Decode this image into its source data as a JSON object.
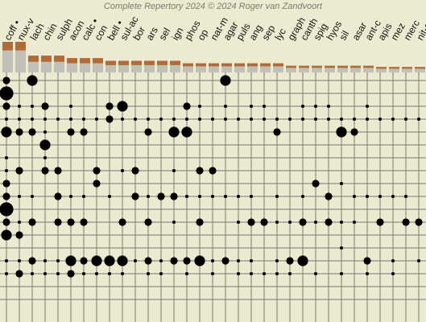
{
  "chart_data": {
    "type": "scatter",
    "title": "Complete Repertory 2024 © 2024 Roger van Zandvoort",
    "xlabel": "",
    "ylabel": "",
    "grid": true,
    "colors": {
      "background": "#ecebd2",
      "bar_top": "#b26b35",
      "bar_bottom": "#c1c1b7",
      "grid": "#8c8c80",
      "dot": "#000000",
      "title": "#7b7b70"
    },
    "remedies": [
      "coff •",
      "nux-v",
      "lach",
      "chin",
      "sulph",
      "acon",
      "calc •",
      "con",
      "bell •",
      "sul-ac",
      "bor",
      "ars",
      "sel",
      "ign",
      "phos",
      "op",
      "nat-m",
      "agar",
      "puls",
      "ang",
      "sep",
      "lyc",
      "graph",
      "canth",
      "spig",
      "hyos",
      "sil",
      "asar",
      "ant-c",
      "apis",
      "mez",
      "merc",
      "nit-ac"
    ],
    "scores": [
      {
        "total": 1.0,
        "grade": 0.72
      },
      {
        "total": 1.0,
        "grade": 0.72
      },
      {
        "total": 0.55,
        "grade": 0.35
      },
      {
        "total": 0.55,
        "grade": 0.35
      },
      {
        "total": 0.55,
        "grade": 0.35
      },
      {
        "total": 0.47,
        "grade": 0.3
      },
      {
        "total": 0.47,
        "grade": 0.3
      },
      {
        "total": 0.47,
        "grade": 0.3
      },
      {
        "total": 0.38,
        "grade": 0.24
      },
      {
        "total": 0.38,
        "grade": 0.24
      },
      {
        "total": 0.38,
        "grade": 0.24
      },
      {
        "total": 0.38,
        "grade": 0.24
      },
      {
        "total": 0.38,
        "grade": 0.24
      },
      {
        "total": 0.38,
        "grade": 0.24
      },
      {
        "total": 0.3,
        "grade": 0.2
      },
      {
        "total": 0.3,
        "grade": 0.2
      },
      {
        "total": 0.3,
        "grade": 0.2
      },
      {
        "total": 0.3,
        "grade": 0.2
      },
      {
        "total": 0.3,
        "grade": 0.2
      },
      {
        "total": 0.3,
        "grade": 0.2
      },
      {
        "total": 0.3,
        "grade": 0.2
      },
      {
        "total": 0.3,
        "grade": 0.2
      },
      {
        "total": 0.22,
        "grade": 0.15
      },
      {
        "total": 0.22,
        "grade": 0.15
      },
      {
        "total": 0.22,
        "grade": 0.15
      },
      {
        "total": 0.22,
        "grade": 0.15
      },
      {
        "total": 0.22,
        "grade": 0.15
      },
      {
        "total": 0.22,
        "grade": 0.15
      },
      {
        "total": 0.22,
        "grade": 0.15
      },
      {
        "total": 0.18,
        "grade": 0.12
      },
      {
        "total": 0.18,
        "grade": 0.12
      },
      {
        "total": 0.18,
        "grade": 0.12
      },
      {
        "total": 0.18,
        "grade": 0.12
      }
    ],
    "rubric_count": 18,
    "grades": [
      {
        "rubric": 0,
        "remedy": 0,
        "g": 2
      },
      {
        "rubric": 0,
        "remedy": 2,
        "g": 3
      },
      {
        "rubric": 0,
        "remedy": 17,
        "g": 3
      },
      {
        "rubric": 1,
        "remedy": 0,
        "g": 4
      },
      {
        "rubric": 2,
        "remedy": 0,
        "g": 2
      },
      {
        "rubric": 2,
        "remedy": 1,
        "g": 1
      },
      {
        "rubric": 2,
        "remedy": 2,
        "g": 1
      },
      {
        "rubric": 2,
        "remedy": 3,
        "g": 2
      },
      {
        "rubric": 2,
        "remedy": 5,
        "g": 1
      },
      {
        "rubric": 2,
        "remedy": 8,
        "g": 2
      },
      {
        "rubric": 2,
        "remedy": 9,
        "g": 3
      },
      {
        "rubric": 2,
        "remedy": 14,
        "g": 2
      },
      {
        "rubric": 2,
        "remedy": 15,
        "g": 1
      },
      {
        "rubric": 2,
        "remedy": 17,
        "g": 1
      },
      {
        "rubric": 2,
        "remedy": 19,
        "g": 1
      },
      {
        "rubric": 2,
        "remedy": 20,
        "g": 1
      },
      {
        "rubric": 2,
        "remedy": 23,
        "g": 1
      },
      {
        "rubric": 2,
        "remedy": 24,
        "g": 1
      },
      {
        "rubric": 2,
        "remedy": 25,
        "g": 1
      },
      {
        "rubric": 2,
        "remedy": 28,
        "g": 1
      },
      {
        "rubric": 3,
        "remedy": 0,
        "g": 1
      },
      {
        "rubric": 3,
        "remedy": 1,
        "g": 1
      },
      {
        "rubric": 3,
        "remedy": 2,
        "g": 1
      },
      {
        "rubric": 3,
        "remedy": 3,
        "g": 1
      },
      {
        "rubric": 3,
        "remedy": 4,
        "g": 1
      },
      {
        "rubric": 3,
        "remedy": 5,
        "g": 1
      },
      {
        "rubric": 3,
        "remedy": 6,
        "g": 1
      },
      {
        "rubric": 3,
        "remedy": 7,
        "g": 1
      },
      {
        "rubric": 3,
        "remedy": 8,
        "g": 2
      },
      {
        "rubric": 3,
        "remedy": 9,
        "g": 1
      },
      {
        "rubric": 3,
        "remedy": 10,
        "g": 1
      },
      {
        "rubric": 3,
        "remedy": 11,
        "g": 1
      },
      {
        "rubric": 3,
        "remedy": 12,
        "g": 1
      },
      {
        "rubric": 3,
        "remedy": 13,
        "g": 1
      },
      {
        "rubric": 3,
        "remedy": 14,
        "g": 1
      },
      {
        "rubric": 3,
        "remedy": 15,
        "g": 1
      },
      {
        "rubric": 3,
        "remedy": 16,
        "g": 1
      },
      {
        "rubric": 3,
        "remedy": 17,
        "g": 1
      },
      {
        "rubric": 3,
        "remedy": 18,
        "g": 1
      },
      {
        "rubric": 3,
        "remedy": 19,
        "g": 1
      },
      {
        "rubric": 3,
        "remedy": 20,
        "g": 1
      },
      {
        "rubric": 3,
        "remedy": 21,
        "g": 1
      },
      {
        "rubric": 3,
        "remedy": 22,
        "g": 1
      },
      {
        "rubric": 3,
        "remedy": 23,
        "g": 1
      },
      {
        "rubric": 3,
        "remedy": 24,
        "g": 1
      },
      {
        "rubric": 3,
        "remedy": 25,
        "g": 1
      },
      {
        "rubric": 3,
        "remedy": 26,
        "g": 1
      },
      {
        "rubric": 3,
        "remedy": 27,
        "g": 1
      },
      {
        "rubric": 3,
        "remedy": 28,
        "g": 1
      },
      {
        "rubric": 3,
        "remedy": 29,
        "g": 1
      },
      {
        "rubric": 3,
        "remedy": 30,
        "g": 1
      },
      {
        "rubric": 3,
        "remedy": 31,
        "g": 1
      },
      {
        "rubric": 3,
        "remedy": 32,
        "g": 1
      },
      {
        "rubric": 4,
        "remedy": 0,
        "g": 3
      },
      {
        "rubric": 4,
        "remedy": 1,
        "g": 2
      },
      {
        "rubric": 4,
        "remedy": 2,
        "g": 2
      },
      {
        "rubric": 4,
        "remedy": 3,
        "g": 1
      },
      {
        "rubric": 4,
        "remedy": 5,
        "g": 2
      },
      {
        "rubric": 4,
        "remedy": 6,
        "g": 2
      },
      {
        "rubric": 4,
        "remedy": 11,
        "g": 2
      },
      {
        "rubric": 4,
        "remedy": 13,
        "g": 3
      },
      {
        "rubric": 4,
        "remedy": 14,
        "g": 3
      },
      {
        "rubric": 4,
        "remedy": 21,
        "g": 2
      },
      {
        "rubric": 4,
        "remedy": 26,
        "g": 3
      },
      {
        "rubric": 4,
        "remedy": 27,
        "g": 2
      },
      {
        "rubric": 5,
        "remedy": 3,
        "g": 3
      },
      {
        "rubric": 6,
        "remedy": 0,
        "g": 1
      },
      {
        "rubric": 6,
        "remedy": 3,
        "g": 1
      },
      {
        "rubric": 7,
        "remedy": 0,
        "g": 1
      },
      {
        "rubric": 7,
        "remedy": 1,
        "g": 2
      },
      {
        "rubric": 7,
        "remedy": 3,
        "g": 2
      },
      {
        "rubric": 7,
        "remedy": 4,
        "g": 2
      },
      {
        "rubric": 7,
        "remedy": 7,
        "g": 2
      },
      {
        "rubric": 7,
        "remedy": 9,
        "g": 1
      },
      {
        "rubric": 7,
        "remedy": 10,
        "g": 2
      },
      {
        "rubric": 7,
        "remedy": 13,
        "g": 1
      },
      {
        "rubric": 7,
        "remedy": 15,
        "g": 2
      },
      {
        "rubric": 7,
        "remedy": 16,
        "g": 2
      },
      {
        "rubric": 8,
        "remedy": 0,
        "g": 2
      },
      {
        "rubric": 8,
        "remedy": 7,
        "g": 2
      },
      {
        "rubric": 8,
        "remedy": 24,
        "g": 2
      },
      {
        "rubric": 8,
        "remedy": 26,
        "g": 1
      },
      {
        "rubric": 9,
        "remedy": 0,
        "g": 2
      },
      {
        "rubric": 9,
        "remedy": 1,
        "g": 1
      },
      {
        "rubric": 9,
        "remedy": 2,
        "g": 1
      },
      {
        "rubric": 9,
        "remedy": 4,
        "g": 2
      },
      {
        "rubric": 9,
        "remedy": 5,
        "g": 1
      },
      {
        "rubric": 9,
        "remedy": 6,
        "g": 1
      },
      {
        "rubric": 9,
        "remedy": 8,
        "g": 1
      },
      {
        "rubric": 9,
        "remedy": 10,
        "g": 2
      },
      {
        "rubric": 9,
        "remedy": 11,
        "g": 1
      },
      {
        "rubric": 9,
        "remedy": 12,
        "g": 2
      },
      {
        "rubric": 9,
        "remedy": 13,
        "g": 2
      },
      {
        "rubric": 9,
        "remedy": 14,
        "g": 1
      },
      {
        "rubric": 9,
        "remedy": 15,
        "g": 1
      },
      {
        "rubric": 9,
        "remedy": 16,
        "g": 1
      },
      {
        "rubric": 9,
        "remedy": 17,
        "g": 1
      },
      {
        "rubric": 9,
        "remedy": 18,
        "g": 1
      },
      {
        "rubric": 9,
        "remedy": 19,
        "g": 1
      },
      {
        "rubric": 9,
        "remedy": 21,
        "g": 1
      },
      {
        "rubric": 9,
        "remedy": 23,
        "g": 1
      },
      {
        "rubric": 9,
        "remedy": 25,
        "g": 2
      },
      {
        "rubric": 9,
        "remedy": 27,
        "g": 1
      },
      {
        "rubric": 9,
        "remedy": 28,
        "g": 1
      },
      {
        "rubric": 9,
        "remedy": 29,
        "g": 1
      },
      {
        "rubric": 9,
        "remedy": 30,
        "g": 1
      },
      {
        "rubric": 9,
        "remedy": 31,
        "g": 1
      },
      {
        "rubric": 10,
        "remedy": 0,
        "g": 4
      },
      {
        "rubric": 11,
        "remedy": 0,
        "g": 2
      },
      {
        "rubric": 11,
        "remedy": 1,
        "g": 1
      },
      {
        "rubric": 11,
        "remedy": 2,
        "g": 2
      },
      {
        "rubric": 11,
        "remedy": 4,
        "g": 2
      },
      {
        "rubric": 11,
        "remedy": 5,
        "g": 2
      },
      {
        "rubric": 11,
        "remedy": 6,
        "g": 2
      },
      {
        "rubric": 11,
        "remedy": 9,
        "g": 2
      },
      {
        "rubric": 11,
        "remedy": 11,
        "g": 2
      },
      {
        "rubric": 11,
        "remedy": 13,
        "g": 1
      },
      {
        "rubric": 11,
        "remedy": 15,
        "g": 2
      },
      {
        "rubric": 11,
        "remedy": 18,
        "g": 1
      },
      {
        "rubric": 11,
        "remedy": 19,
        "g": 2
      },
      {
        "rubric": 11,
        "remedy": 20,
        "g": 2
      },
      {
        "rubric": 11,
        "remedy": 21,
        "g": 1
      },
      {
        "rubric": 11,
        "remedy": 22,
        "g": 1
      },
      {
        "rubric": 11,
        "remedy": 23,
        "g": 2
      },
      {
        "rubric": 11,
        "remedy": 24,
        "g": 1
      },
      {
        "rubric": 11,
        "remedy": 25,
        "g": 2
      },
      {
        "rubric": 11,
        "remedy": 26,
        "g": 1
      },
      {
        "rubric": 11,
        "remedy": 27,
        "g": 1
      },
      {
        "rubric": 11,
        "remedy": 29,
        "g": 2
      },
      {
        "rubric": 11,
        "remedy": 31,
        "g": 2
      },
      {
        "rubric": 11,
        "remedy": 32,
        "g": 2
      },
      {
        "rubric": 12,
        "remedy": 0,
        "g": 3
      },
      {
        "rubric": 12,
        "remedy": 1,
        "g": 2
      },
      {
        "rubric": 13,
        "remedy": 26,
        "g": 1
      },
      {
        "rubric": 14,
        "remedy": 0,
        "g": 1
      },
      {
        "rubric": 14,
        "remedy": 1,
        "g": 1
      },
      {
        "rubric": 14,
        "remedy": 2,
        "g": 2
      },
      {
        "rubric": 14,
        "remedy": 3,
        "g": 1
      },
      {
        "rubric": 14,
        "remedy": 4,
        "g": 1
      },
      {
        "rubric": 14,
        "remedy": 5,
        "g": 3
      },
      {
        "rubric": 14,
        "remedy": 6,
        "g": 2
      },
      {
        "rubric": 14,
        "remedy": 7,
        "g": 3
      },
      {
        "rubric": 14,
        "remedy": 8,
        "g": 3
      },
      {
        "rubric": 14,
        "remedy": 9,
        "g": 3
      },
      {
        "rubric": 14,
        "remedy": 10,
        "g": 1
      },
      {
        "rubric": 14,
        "remedy": 11,
        "g": 2
      },
      {
        "rubric": 14,
        "remedy": 12,
        "g": 1
      },
      {
        "rubric": 14,
        "remedy": 13,
        "g": 2
      },
      {
        "rubric": 14,
        "remedy": 14,
        "g": 2
      },
      {
        "rubric": 14,
        "remedy": 15,
        "g": 3
      },
      {
        "rubric": 14,
        "remedy": 16,
        "g": 1
      },
      {
        "rubric": 14,
        "remedy": 17,
        "g": 2
      },
      {
        "rubric": 14,
        "remedy": 18,
        "g": 1
      },
      {
        "rubric": 14,
        "remedy": 19,
        "g": 1
      },
      {
        "rubric": 14,
        "remedy": 21,
        "g": 1
      },
      {
        "rubric": 14,
        "remedy": 22,
        "g": 2
      },
      {
        "rubric": 14,
        "remedy": 23,
        "g": 3
      },
      {
        "rubric": 14,
        "remedy": 28,
        "g": 2
      },
      {
        "rubric": 14,
        "remedy": 30,
        "g": 1
      },
      {
        "rubric": 14,
        "remedy": 32,
        "g": 1
      },
      {
        "rubric": 15,
        "remedy": 0,
        "g": 1
      },
      {
        "rubric": 15,
        "remedy": 1,
        "g": 2
      },
      {
        "rubric": 15,
        "remedy": 2,
        "g": 1
      },
      {
        "rubric": 15,
        "remedy": 3,
        "g": 1
      },
      {
        "rubric": 15,
        "remedy": 4,
        "g": 1
      },
      {
        "rubric": 15,
        "remedy": 5,
        "g": 2
      },
      {
        "rubric": 15,
        "remedy": 6,
        "g": 1
      },
      {
        "rubric": 15,
        "remedy": 7,
        "g": 1
      },
      {
        "rubric": 15,
        "remedy": 8,
        "g": 1
      },
      {
        "rubric": 15,
        "remedy": 9,
        "g": 1
      },
      {
        "rubric": 15,
        "remedy": 11,
        "g": 1
      },
      {
        "rubric": 15,
        "remedy": 12,
        "g": 1
      },
      {
        "rubric": 15,
        "remedy": 14,
        "g": 1
      },
      {
        "rubric": 15,
        "remedy": 16,
        "g": 1
      },
      {
        "rubric": 15,
        "remedy": 18,
        "g": 1
      },
      {
        "rubric": 15,
        "remedy": 19,
        "g": 1
      },
      {
        "rubric": 15,
        "remedy": 20,
        "g": 1
      },
      {
        "rubric": 15,
        "remedy": 21,
        "g": 1
      },
      {
        "rubric": 15,
        "remedy": 22,
        "g": 1
      },
      {
        "rubric": 15,
        "remedy": 24,
        "g": 1
      },
      {
        "rubric": 15,
        "remedy": 26,
        "g": 1
      },
      {
        "rubric": 15,
        "remedy": 28,
        "g": 1
      },
      {
        "rubric": 15,
        "remedy": 30,
        "g": 1
      }
    ]
  }
}
